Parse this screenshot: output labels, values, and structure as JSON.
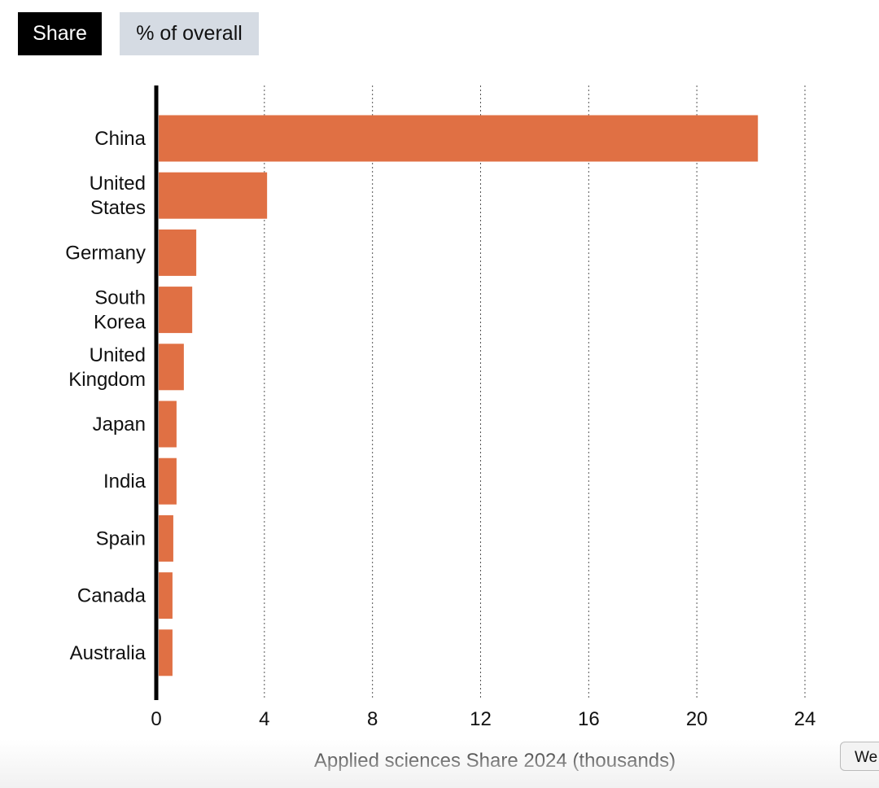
{
  "toggle": {
    "share_label": "Share",
    "percent_label": "% of overall",
    "active": "Share"
  },
  "tooltip_text": "We",
  "colors": {
    "bar": "#e07044",
    "axis": "#000000",
    "grid": "#555555"
  },
  "chart_data": {
    "type": "bar",
    "orientation": "horizontal",
    "categories": [
      [
        "China"
      ],
      [
        "United",
        "States"
      ],
      [
        "Germany"
      ],
      [
        "South",
        "Korea"
      ],
      [
        "United",
        "Kingdom"
      ],
      [
        "Japan"
      ],
      [
        "India"
      ],
      [
        "Spain"
      ],
      [
        "Canada"
      ],
      [
        "Australia"
      ]
    ],
    "values": [
      22.26,
      4.1,
      1.48,
      1.33,
      1.02,
      0.75,
      0.75,
      0.63,
      0.6,
      0.6
    ],
    "xlabel": "Applied sciences Share 2024 (thousands)",
    "xlim": [
      0,
      24
    ],
    "xticks": [
      0,
      4,
      8,
      12,
      16,
      20,
      24
    ],
    "grid": "vertical dotted"
  }
}
